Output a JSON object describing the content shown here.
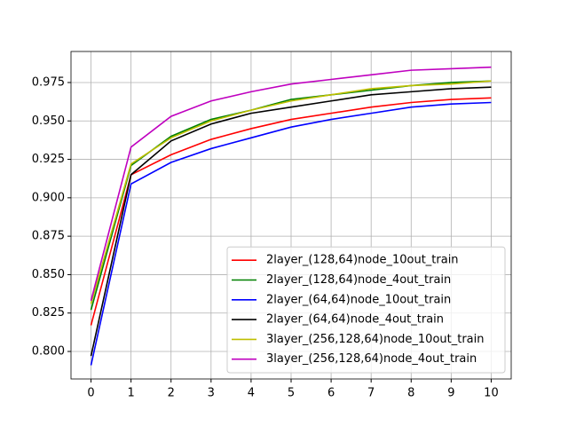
{
  "chart_data": {
    "type": "line",
    "x": [
      0,
      1,
      2,
      3,
      4,
      5,
      6,
      7,
      8,
      9,
      10
    ],
    "series": [
      {
        "name": "2layer_(128,64)node_10out_train",
        "color": "#ff0000",
        "values": [
          0.817,
          0.915,
          0.928,
          0.938,
          0.945,
          0.951,
          0.955,
          0.959,
          0.962,
          0.964,
          0.965
        ]
      },
      {
        "name": "2layer_(128,64)node_4out_train",
        "color": "#008000",
        "values": [
          0.827,
          0.921,
          0.94,
          0.951,
          0.957,
          0.964,
          0.967,
          0.97,
          0.973,
          0.975,
          0.976
        ]
      },
      {
        "name": "2layer_(64,64)node_10out_train",
        "color": "#0000ff",
        "values": [
          0.791,
          0.909,
          0.923,
          0.932,
          0.939,
          0.946,
          0.951,
          0.955,
          0.959,
          0.961,
          0.962
        ]
      },
      {
        "name": "2layer_(64,64)node_4out_train",
        "color": "#000000",
        "values": [
          0.797,
          0.915,
          0.937,
          0.948,
          0.955,
          0.959,
          0.963,
          0.967,
          0.969,
          0.971,
          0.972
        ]
      },
      {
        "name": "3layer_(256,128,64)node_10out_train",
        "color": "#bfbf00",
        "values": [
          0.831,
          0.922,
          0.939,
          0.95,
          0.957,
          0.963,
          0.967,
          0.971,
          0.973,
          0.974,
          0.976
        ]
      },
      {
        "name": "3layer_(256,128,64)node_4out_train",
        "color": "#bf00bf",
        "values": [
          0.833,
          0.933,
          0.953,
          0.963,
          0.969,
          0.974,
          0.977,
          0.98,
          0.983,
          0.984,
          0.985
        ]
      }
    ],
    "xlim": [
      -0.5,
      10.5
    ],
    "xticks": [
      0,
      1,
      2,
      3,
      4,
      5,
      6,
      7,
      8,
      9,
      10
    ],
    "ylim": [
      0.7821,
      0.9952
    ],
    "yticks": [
      {
        "value": 0.8,
        "label": "0.800"
      },
      {
        "value": 0.825,
        "label": "0.825"
      },
      {
        "value": 0.85,
        "label": "0.850"
      },
      {
        "value": 0.875,
        "label": "0.875"
      },
      {
        "value": 0.9,
        "label": "0.900"
      },
      {
        "value": 0.925,
        "label": "0.925"
      },
      {
        "value": 0.95,
        "label": "0.950"
      },
      {
        "value": 0.975,
        "label": "0.975"
      }
    ],
    "grid": true,
    "legend": "lower right"
  }
}
